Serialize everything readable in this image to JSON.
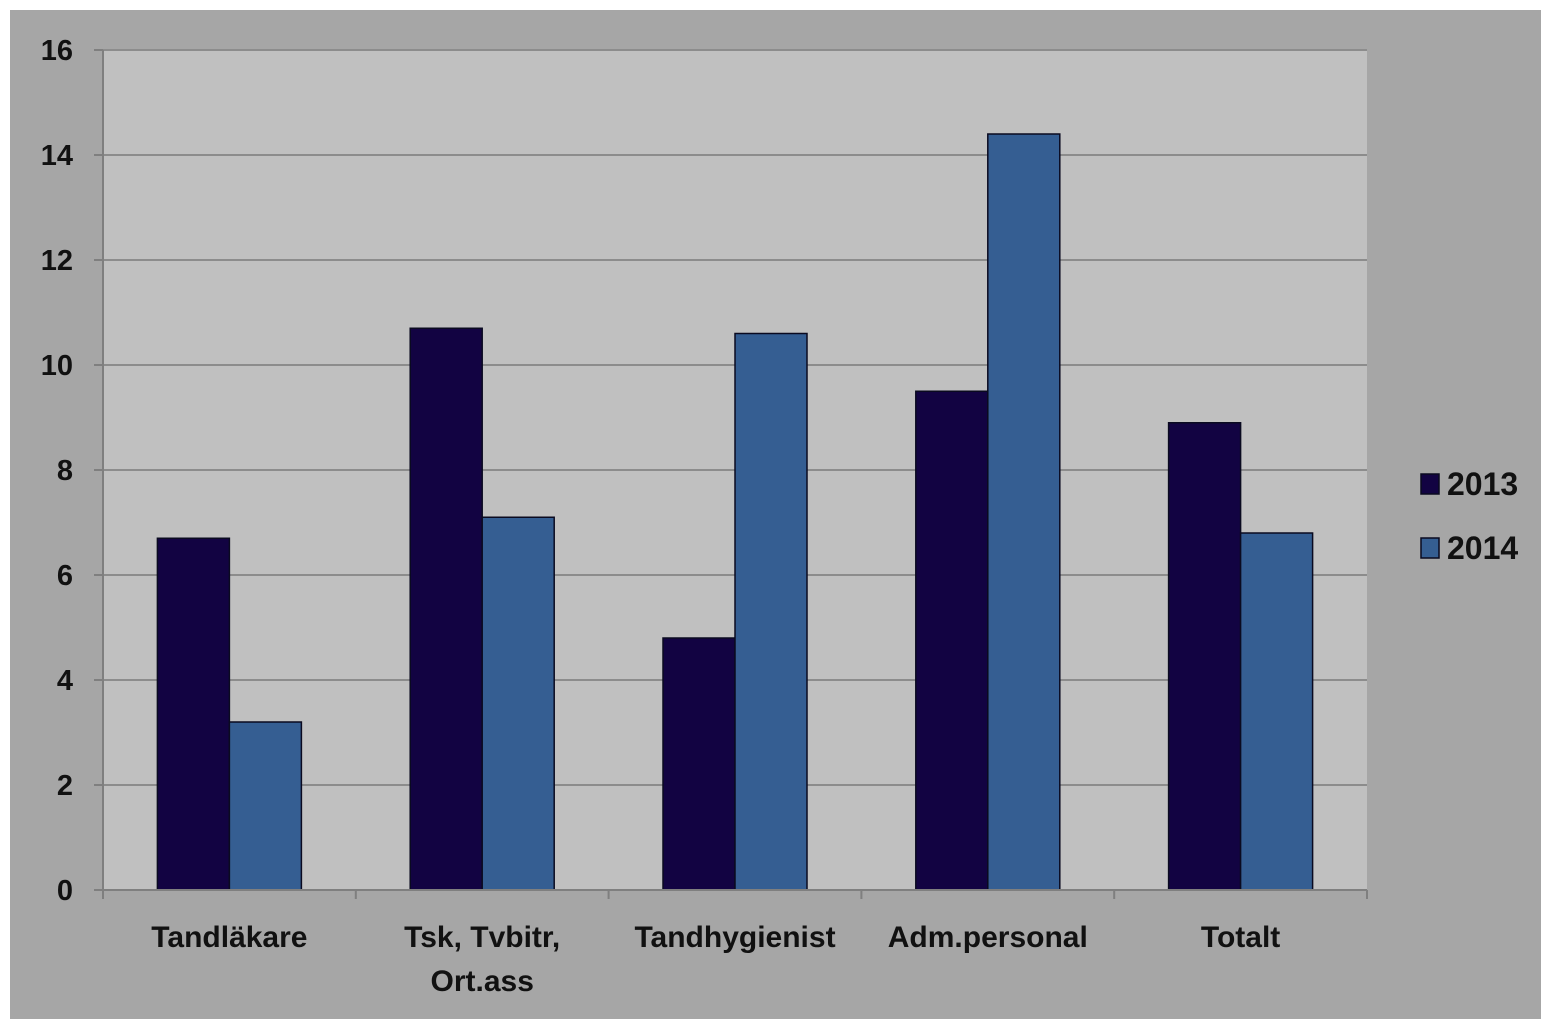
{
  "chart_data": {
    "type": "bar",
    "title": "",
    "xlabel": "",
    "ylabel": "",
    "categories": [
      [
        "Tandläkare"
      ],
      [
        "Tsk, Tvbitr,",
        "Ort.ass"
      ],
      [
        "Tandhygienist"
      ],
      [
        "Adm.personal"
      ],
      [
        "Totalt"
      ]
    ],
    "series": [
      {
        "name": "2013",
        "values": [
          6.7,
          10.7,
          4.8,
          9.5,
          8.9
        ],
        "color": "#120342"
      },
      {
        "name": "2014",
        "values": [
          3.2,
          7.1,
          10.6,
          14.4,
          6.8
        ],
        "color": "#355E92"
      }
    ],
    "ylim": [
      0,
      16
    ],
    "yticks": [
      0,
      2,
      4,
      6,
      8,
      10,
      12,
      14,
      16
    ],
    "grid": true,
    "legend_position": "right",
    "colors": {
      "frame_background": "#A6A6A6",
      "plot_background": "#C0C0C0",
      "gridline": "#8C8C8C",
      "axis_line": "#7F7F7F",
      "bar_edge": "#0A0A20"
    }
  }
}
